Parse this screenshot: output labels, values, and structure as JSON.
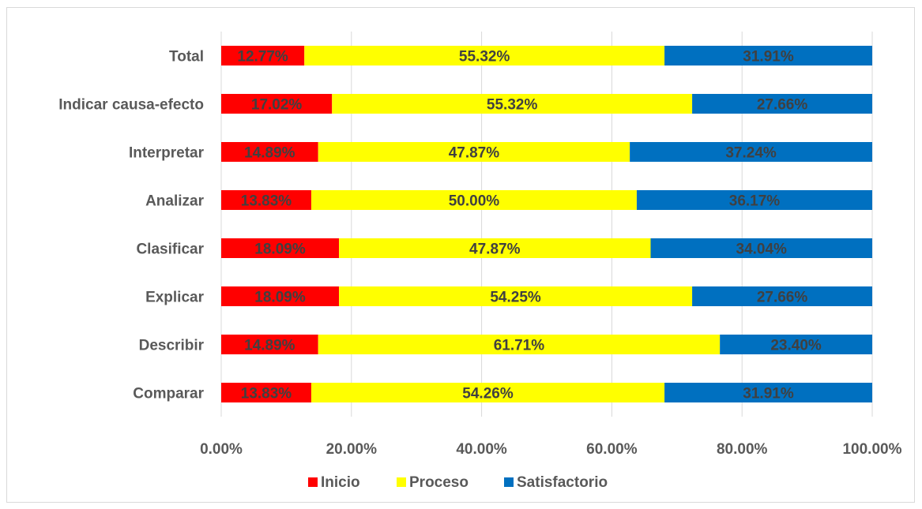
{
  "chart_data": {
    "type": "bar",
    "orientation": "horizontal",
    "stacked": true,
    "categories": [
      "Total",
      "Indicar causa-efecto",
      "Interpretar",
      "Analizar",
      "Clasificar",
      "Explicar",
      "Describir",
      "Comparar"
    ],
    "series": [
      {
        "name": "Inicio",
        "color": "#ff0000",
        "values": [
          12.77,
          17.02,
          14.89,
          13.83,
          18.09,
          18.09,
          14.89,
          13.83
        ],
        "labels": [
          "12.77%",
          "17.02%",
          "14.89%",
          "13.83%",
          "18.09%",
          "18.09%",
          "14.89%",
          "13.83%"
        ]
      },
      {
        "name": "Proceso",
        "color": "#ffff00",
        "values": [
          55.32,
          55.32,
          47.87,
          50.0,
          47.87,
          54.25,
          61.71,
          54.26
        ],
        "labels": [
          "55.32%",
          "55.32%",
          "47.87%",
          "50.00%",
          "47.87%",
          "54.25%",
          "61.71%",
          "54.26%"
        ]
      },
      {
        "name": "Satisfactorio",
        "color": "#0070c0",
        "values": [
          31.91,
          27.66,
          37.24,
          36.17,
          34.04,
          27.66,
          23.4,
          31.91
        ],
        "labels": [
          "31.91%",
          "27.66%",
          "37.24%",
          "36.17%",
          "34.04%",
          "27.66%",
          "23.40%",
          "31.91%"
        ]
      }
    ],
    "xlim": [
      0,
      100
    ],
    "xticks": [
      "0.00%",
      "20.00%",
      "40.00%",
      "60.00%",
      "80.00%",
      "100.00%"
    ],
    "grid": "vertical",
    "legend": "bottom"
  }
}
